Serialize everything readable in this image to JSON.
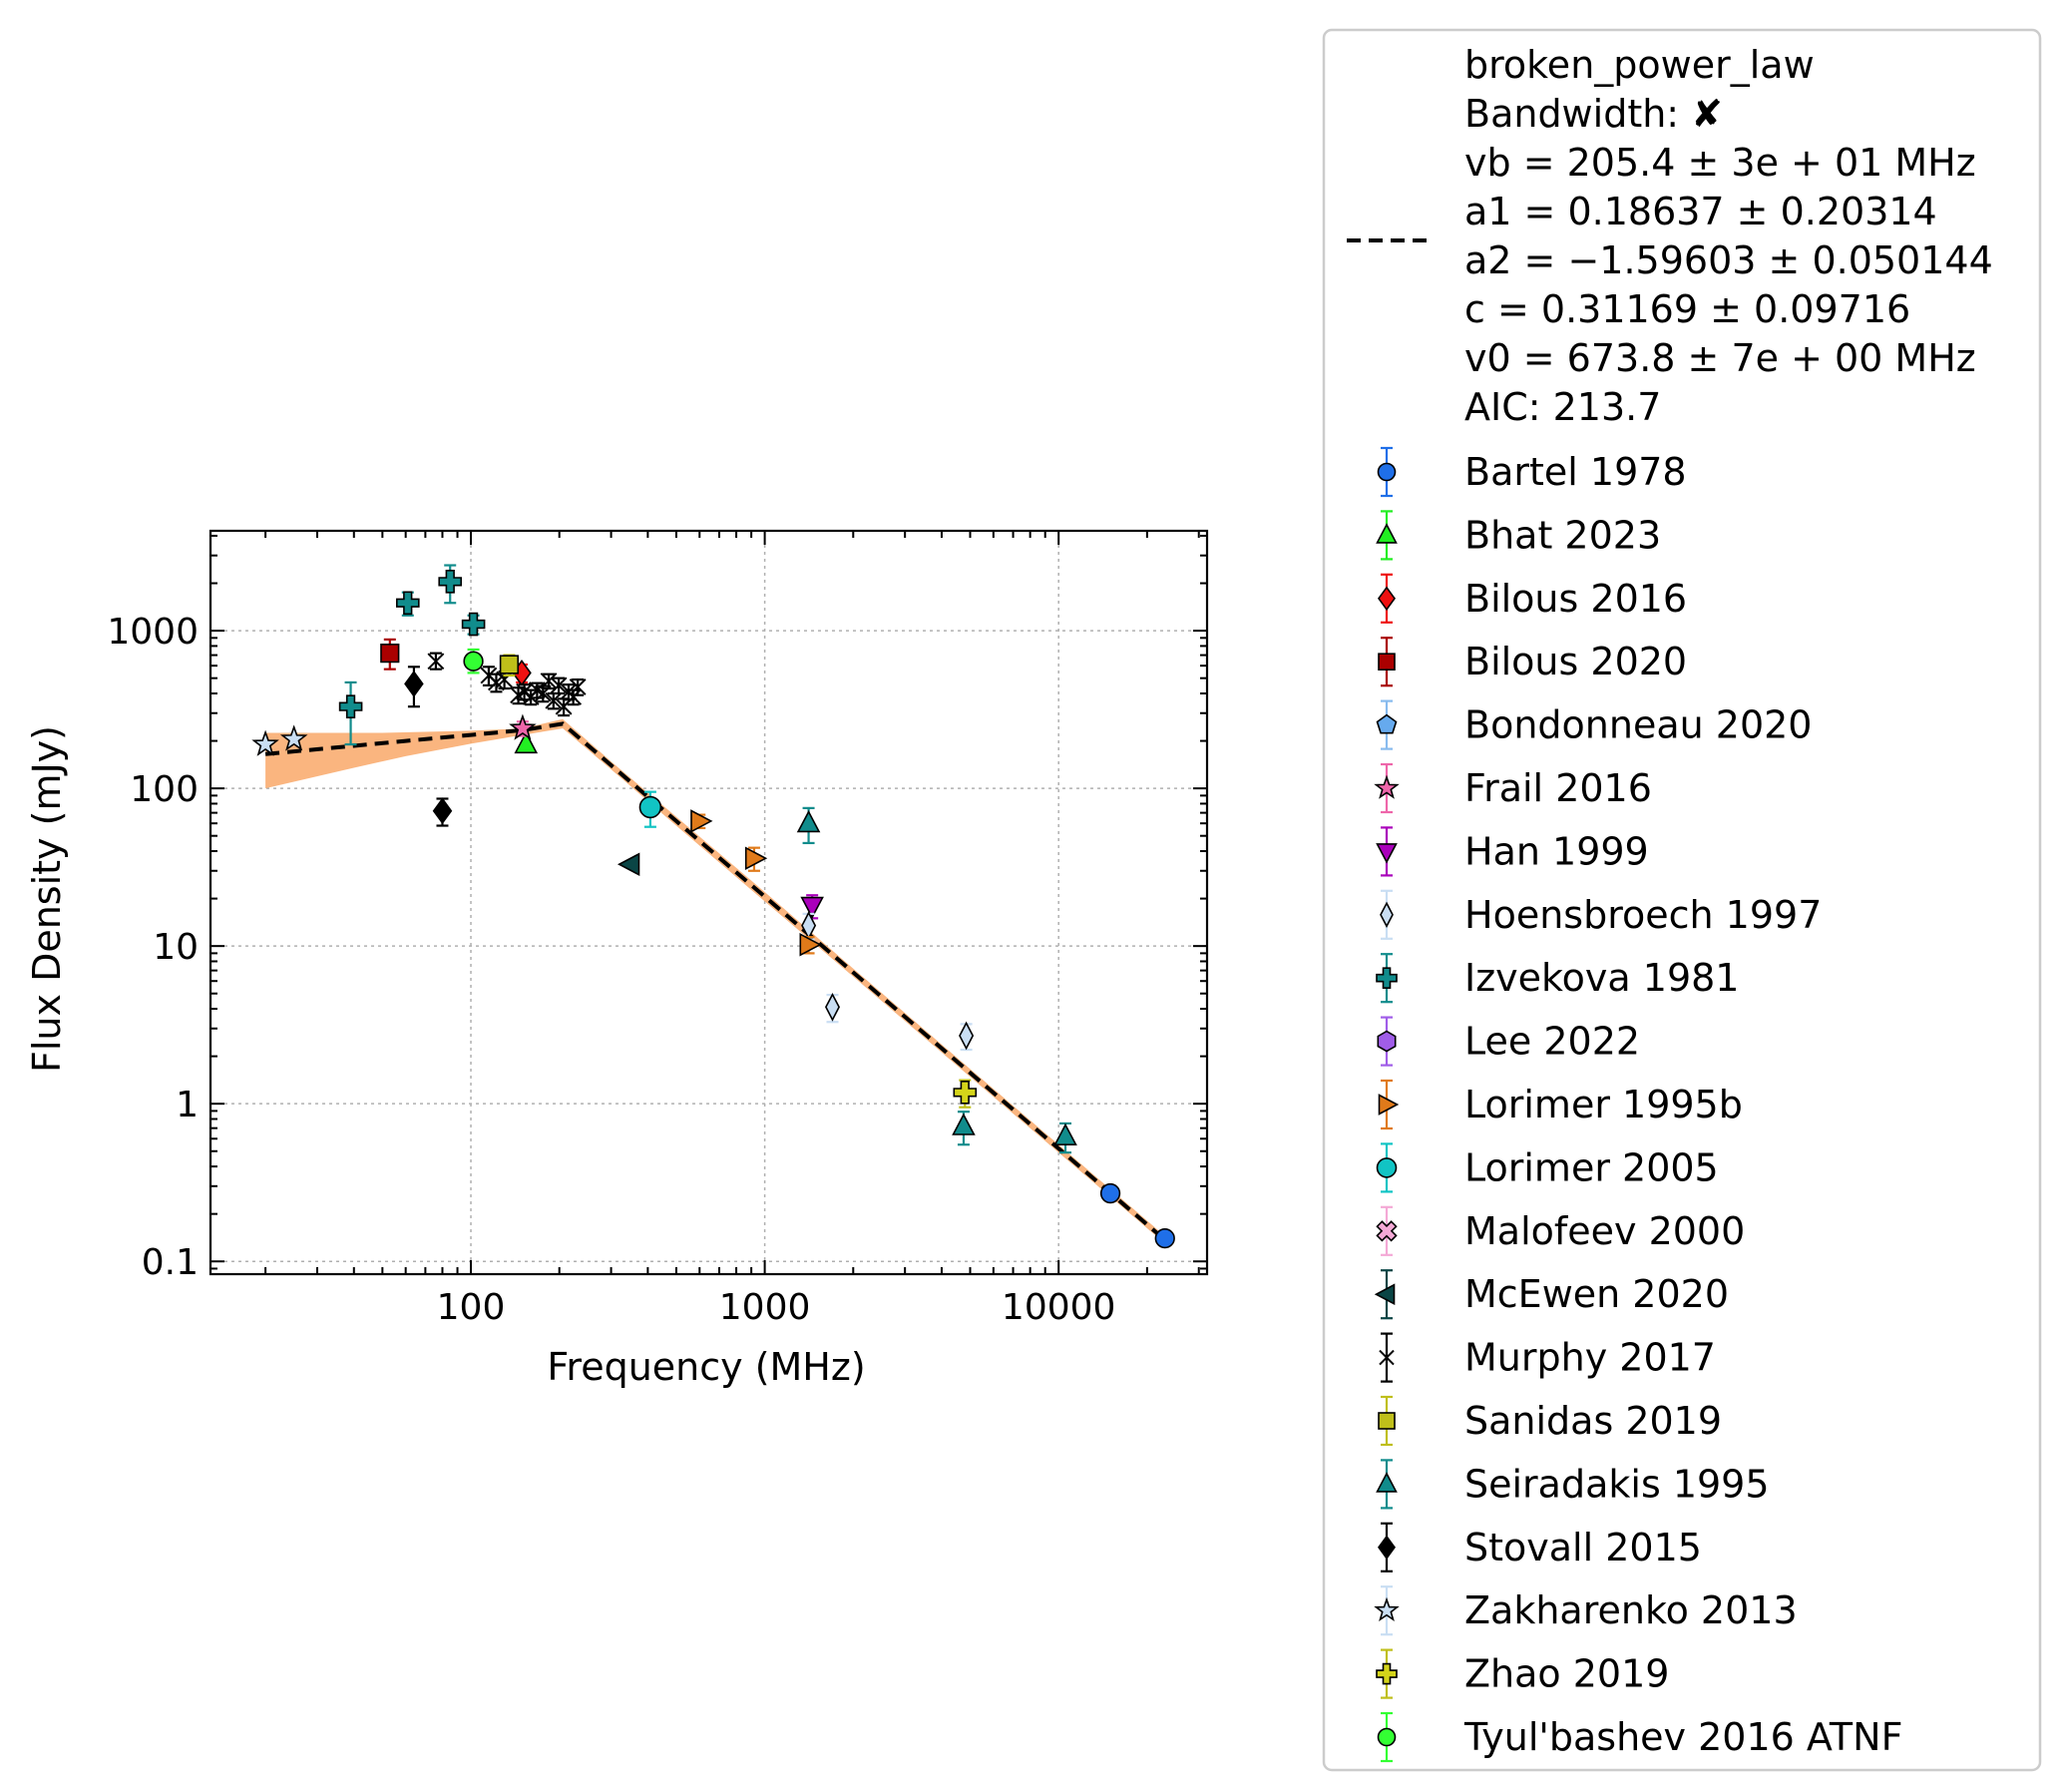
{
  "chart_data": {
    "type": "scatter",
    "title": "",
    "xlabel": "Frequency (MHz)",
    "ylabel": "Flux Density (mJy)",
    "xscale": "log",
    "yscale": "log",
    "xlim": [
      13,
      32000
    ],
    "ylim": [
      0.083,
      4300
    ],
    "grid": true,
    "legend_location": "outside right",
    "x_ticks": [
      {
        "value": 100,
        "label": "100"
      },
      {
        "value": 1000,
        "label": "1000"
      },
      {
        "value": 10000,
        "label": "10000"
      }
    ],
    "y_ticks": [
      {
        "value": 0.1,
        "label": "0.1"
      },
      {
        "value": 1,
        "label": "1"
      },
      {
        "value": 10,
        "label": "10"
      },
      {
        "value": 100,
        "label": "100"
      },
      {
        "value": 1000,
        "label": "1000"
      }
    ],
    "fit": {
      "label_lines": [
        "broken_power_law",
        "Bandwidth: ✘",
        "vb = 205.4 ± 3e + 01 MHz",
        "a1 = 0.18637 ± 0.20314",
        "a2 = −1.59603 ± 0.050144",
        "c = 0.31169 ± 0.09716",
        "v0 = 673.8 ± 7e + 00 MHz",
        "AIC: 213.7"
      ],
      "color": "#000000",
      "line": [
        [
          20,
          165
        ],
        [
          40,
          186
        ],
        [
          60,
          200
        ],
        [
          100,
          218
        ],
        [
          150,
          234
        ],
        [
          205.4,
          257
        ],
        [
          300,
          140
        ],
        [
          500,
          62
        ],
        [
          1000,
          20.6
        ],
        [
          2000,
          6.8
        ],
        [
          5000,
          1.57
        ],
        [
          10000,
          0.52
        ],
        [
          23000,
          0.137
        ]
      ],
      "band_color": "#f9a868",
      "band_upper": [
        [
          20,
          225
        ],
        [
          50,
          225
        ],
        [
          100,
          232
        ],
        [
          150,
          240
        ],
        [
          205.4,
          275
        ],
        [
          300,
          148
        ],
        [
          500,
          66
        ],
        [
          1000,
          22
        ],
        [
          2000,
          7.2
        ],
        [
          5000,
          1.66
        ],
        [
          10000,
          0.55
        ],
        [
          23000,
          0.145
        ]
      ],
      "band_lower": [
        [
          20,
          100
        ],
        [
          40,
          135
        ],
        [
          60,
          160
        ],
        [
          100,
          192
        ],
        [
          150,
          218
        ],
        [
          205.4,
          240
        ],
        [
          300,
          132
        ],
        [
          500,
          58
        ],
        [
          1000,
          19.2
        ],
        [
          2000,
          6.4
        ],
        [
          5000,
          1.48
        ],
        [
          10000,
          0.49
        ],
        [
          23000,
          0.13
        ]
      ]
    },
    "series": [
      {
        "name": "Bartel 1978",
        "marker": "circle",
        "color": "#1f6fe8",
        "ecolor": "#1f6fe8",
        "points": [
          [
            15000,
            0.27,
            0.27,
            0.27
          ],
          [
            23000,
            0.14,
            0.14,
            0.14
          ]
        ]
      },
      {
        "name": "Bhat 2023",
        "marker": "triangle-up",
        "color": "#22ee22",
        "ecolor": "#22ee22",
        "points": [
          [
            154,
            190,
            190,
            190
          ]
        ]
      },
      {
        "name": "Bilous 2016",
        "marker": "diamond",
        "color": "#ee1111",
        "ecolor": "#ee1111",
        "points": [
          [
            149,
            540,
            470,
            610
          ]
        ]
      },
      {
        "name": "Bilous 2020",
        "marker": "square",
        "color": "#aa0000",
        "ecolor": "#aa0000",
        "points": [
          [
            53,
            720,
            570,
            880
          ]
        ]
      },
      {
        "name": "Bondonneau 2020",
        "marker": "pentagon",
        "color": "#66aaee",
        "ecolor": "#88bbee",
        "points": []
      },
      {
        "name": "Frail 2016",
        "marker": "star",
        "color": "#ee66aa",
        "ecolor": "#ee66aa",
        "points": [
          [
            150,
            240,
            215,
            265
          ]
        ]
      },
      {
        "name": "Han 1999",
        "marker": "triangle-down",
        "color": "#aa00bb",
        "ecolor": "#aa00bb",
        "points": [
          [
            1450,
            18,
            15,
            21
          ]
        ]
      },
      {
        "name": "Hoensbroech 1997",
        "marker": "thin-diamond",
        "color": "#c9def3",
        "ecolor": "#c9def3",
        "points": [
          [
            1410,
            13.5,
            11,
            16
          ],
          [
            1700,
            4.1,
            3.3,
            4.9
          ],
          [
            4850,
            2.7,
            2.2,
            3.2
          ]
        ]
      },
      {
        "name": "Izvekova 1981",
        "marker": "plus-filled",
        "color": "#118c8c",
        "ecolor": "#118c8c",
        "points": [
          [
            39,
            330,
            190,
            470
          ],
          [
            61,
            1500,
            1250,
            1750
          ],
          [
            85,
            2050,
            1500,
            2600
          ],
          [
            102,
            1100,
            950,
            1250
          ]
        ]
      },
      {
        "name": "Lee 2022",
        "marker": "hexagon",
        "color": "#a05de8",
        "ecolor": "#a05de8",
        "points": []
      },
      {
        "name": "Lorimer 1995b",
        "marker": "triangle-right",
        "color": "#e07a1a",
        "ecolor": "#e07a1a",
        "points": [
          [
            600,
            62,
            56,
            68
          ],
          [
            920,
            36,
            30,
            42
          ],
          [
            1410,
            10.2,
            9,
            11.4
          ]
        ]
      },
      {
        "name": "Lorimer 2005",
        "marker": "octagon",
        "color": "#11c4c4",
        "ecolor": "#11c4c4",
        "points": [
          [
            408,
            76,
            57,
            95
          ]
        ]
      },
      {
        "name": "Malofeev 2000",
        "marker": "x-filled",
        "color": "#f4a9d6",
        "ecolor": "#f4a9d6",
        "points": []
      },
      {
        "name": "McEwen 2020",
        "marker": "triangle-left",
        "color": "#0a4545",
        "ecolor": "#0a4545",
        "points": [
          [
            350,
            33,
            33,
            33
          ]
        ]
      },
      {
        "name": "Murphy 2017",
        "marker": "x-thin",
        "color": "#000000",
        "ecolor": "#000000",
        "points": [
          [
            76,
            640,
            570,
            720
          ],
          [
            115,
            520,
            450,
            590
          ],
          [
            122,
            470,
            410,
            530
          ],
          [
            130,
            490,
            430,
            550
          ],
          [
            145,
            390,
            345,
            435
          ],
          [
            152,
            410,
            365,
            455
          ],
          [
            160,
            380,
            340,
            420
          ],
          [
            168,
            420,
            375,
            465
          ],
          [
            176,
            400,
            355,
            445
          ],
          [
            184,
            480,
            430,
            530
          ],
          [
            191,
            360,
            320,
            400
          ],
          [
            199,
            450,
            400,
            500
          ],
          [
            207,
            330,
            290,
            370
          ],
          [
            215,
            410,
            365,
            455
          ],
          [
            223,
            380,
            340,
            420
          ],
          [
            231,
            440,
            390,
            490
          ]
        ]
      },
      {
        "name": "Sanidas 2019",
        "marker": "square",
        "color": "#bfbf1a",
        "ecolor": "#bfbf1a",
        "points": [
          [
            135,
            610,
            520,
            700
          ]
        ]
      },
      {
        "name": "Seiradakis 1995",
        "marker": "triangle-up",
        "color": "#118c8c",
        "ecolor": "#118c8c",
        "points": [
          [
            1410,
            60,
            45,
            75
          ],
          [
            4750,
            0.72,
            0.55,
            0.89
          ],
          [
            10550,
            0.62,
            0.49,
            0.75
          ]
        ]
      },
      {
        "name": "Stovall 2015",
        "marker": "diamond",
        "color": "#000000",
        "ecolor": "#000000",
        "points": [
          [
            64,
            460,
            330,
            590
          ],
          [
            80,
            72,
            58,
            86
          ]
        ]
      },
      {
        "name": "Zakharenko 2013",
        "marker": "star",
        "color": "#c9def3",
        "ecolor": "#c9def3",
        "points": [
          [
            20,
            190,
            190,
            190
          ],
          [
            25,
            205,
            205,
            205
          ]
        ]
      },
      {
        "name": "Zhao 2019",
        "marker": "plus-filled",
        "color": "#d4d41a",
        "ecolor": "#bfbf1a",
        "points": [
          [
            4800,
            1.18,
            0.95,
            1.41
          ]
        ]
      },
      {
        "name": "Tyul'bashev 2016 ATNF",
        "marker": "circle",
        "color": "#33ff33",
        "ecolor": "#33ff33",
        "points": [
          [
            102,
            640,
            540,
            760
          ]
        ]
      }
    ]
  }
}
